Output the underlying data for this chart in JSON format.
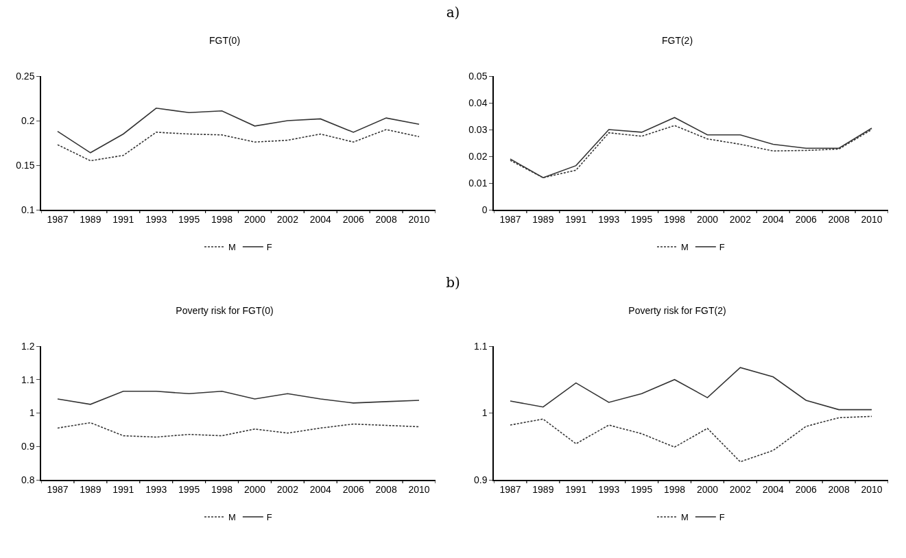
{
  "chart_data": [
    {
      "type": "line",
      "title": "FGT(0)",
      "annotations": [
        "a)"
      ],
      "categories": [
        "1987",
        "1989",
        "1991",
        "1993",
        "1995",
        "1998",
        "2000",
        "2002",
        "2004",
        "2006",
        "2008",
        "2010"
      ],
      "ylim": [
        0.1,
        0.25
      ],
      "yticks": [
        0.1,
        0.15,
        0.2,
        0.25
      ],
      "grid": false,
      "legend": "bottom",
      "series": [
        {
          "name": "M",
          "color": "#333333",
          "line_style": "dashed",
          "values": [
            0.173,
            0.155,
            0.161,
            0.187,
            0.185,
            0.184,
            0.176,
            0.178,
            0.185,
            0.176,
            0.19,
            0.182
          ]
        },
        {
          "name": "F",
          "color": "#333333",
          "line_style": "solid",
          "values": [
            0.188,
            0.164,
            0.185,
            0.214,
            0.209,
            0.211,
            0.194,
            0.2,
            0.202,
            0.187,
            0.203,
            0.196
          ]
        }
      ]
    },
    {
      "type": "line",
      "title": "FGT(2)",
      "categories": [
        "1987",
        "1989",
        "1991",
        "1993",
        "1995",
        "1998",
        "2000",
        "2002",
        "2004",
        "2006",
        "2008",
        "2010"
      ],
      "ylim": [
        0,
        0.05
      ],
      "yticks": [
        0,
        0.01,
        0.02,
        0.03,
        0.04,
        0.05
      ],
      "grid": false,
      "legend": "bottom",
      "series": [
        {
          "name": "M",
          "color": "#333333",
          "line_style": "dashed",
          "values": [
            0.0185,
            0.012,
            0.0148,
            0.0288,
            0.0275,
            0.0315,
            0.0265,
            0.0245,
            0.022,
            0.0222,
            0.0227,
            0.03
          ]
        },
        {
          "name": "F",
          "color": "#333333",
          "line_style": "solid",
          "values": [
            0.019,
            0.012,
            0.0165,
            0.03,
            0.029,
            0.0345,
            0.028,
            0.028,
            0.0245,
            0.023,
            0.023,
            0.0305
          ]
        }
      ]
    },
    {
      "type": "line",
      "title": "Poverty risk for FGT(0)",
      "annotations": [
        "b)"
      ],
      "categories": [
        "1987",
        "1989",
        "1991",
        "1993",
        "1995",
        "1998",
        "2000",
        "2002",
        "2004",
        "2006",
        "2008",
        "2010"
      ],
      "ylim": [
        0.8,
        1.2
      ],
      "yticks": [
        0.8,
        0.9,
        1,
        1.1,
        1.2
      ],
      "grid": false,
      "legend": "bottom",
      "series": [
        {
          "name": "M",
          "color": "#333333",
          "line_style": "dashed",
          "values": [
            0.955,
            0.971,
            0.932,
            0.928,
            0.936,
            0.932,
            0.952,
            0.94,
            0.955,
            0.967,
            0.963,
            0.959
          ]
        },
        {
          "name": "F",
          "color": "#333333",
          "line_style": "solid",
          "values": [
            1.042,
            1.026,
            1.065,
            1.065,
            1.058,
            1.065,
            1.042,
            1.058,
            1.042,
            1.03,
            1.034,
            1.038
          ]
        }
      ]
    },
    {
      "type": "line",
      "title": "Poverty risk for FGT(2)",
      "categories": [
        "1987",
        "1989",
        "1991",
        "1993",
        "1995",
        "1998",
        "2000",
        "2002",
        "2004",
        "2006",
        "2008",
        "2010"
      ],
      "ylim": [
        0.9,
        1.1
      ],
      "yticks": [
        0.9,
        1,
        1.1
      ],
      "grid": false,
      "legend": "bottom",
      "series": [
        {
          "name": "M",
          "color": "#333333",
          "line_style": "dashed",
          "values": [
            0.982,
            0.991,
            0.954,
            0.982,
            0.969,
            0.949,
            0.977,
            0.927,
            0.944,
            0.98,
            0.993,
            0.995
          ]
        },
        {
          "name": "F",
          "color": "#333333",
          "line_style": "solid",
          "values": [
            1.018,
            1.009,
            1.045,
            1.016,
            1.029,
            1.05,
            1.023,
            1.068,
            1.054,
            1.019,
            1.005,
            1.005
          ]
        }
      ]
    }
  ]
}
